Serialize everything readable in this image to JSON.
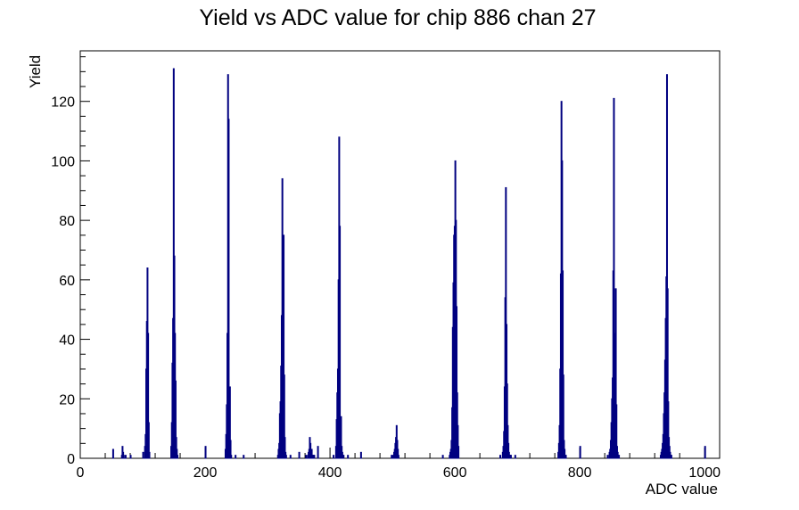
{
  "chart_data": {
    "type": "bar",
    "title": "Yield vs ADC value for chip 886 chan 27",
    "xlabel": "ADC value",
    "ylabel": "Yield",
    "xlim": [
      0,
      1024
    ],
    "ylim": [
      0,
      137
    ],
    "x_ticks": [
      0,
      200,
      400,
      600,
      800,
      1000
    ],
    "y_ticks": [
      0,
      20,
      40,
      60,
      80,
      100,
      120
    ],
    "grid": false,
    "line_color": "#000080",
    "series": [
      {
        "x": [
          52,
          66,
          67,
          68,
          69,
          72,
          80,
          100,
          103,
          104,
          105,
          106,
          107,
          108,
          109,
          110,
          145,
          146,
          147,
          148,
          149,
          150,
          151,
          152,
          153,
          154,
          155,
          200,
          232,
          233,
          234,
          235,
          236,
          237,
          238,
          239,
          240,
          241,
          248,
          261,
          316,
          317,
          318,
          319,
          320,
          321,
          322,
          323,
          324,
          325,
          326,
          327,
          328,
          329,
          336,
          350,
          361,
          364,
          365,
          366,
          367,
          368,
          369,
          370,
          371,
          372,
          373,
          374,
          380,
          405,
          409,
          410,
          411,
          412,
          413,
          414,
          415,
          416,
          417,
          418,
          419,
          420,
          421,
          428,
          449,
          498,
          500,
          502,
          503,
          504,
          505,
          506,
          507,
          508,
          509,
          580,
          591,
          592,
          593,
          594,
          595,
          596,
          597,
          598,
          599,
          600,
          601,
          602,
          603,
          604,
          605,
          672,
          676,
          677,
          678,
          679,
          680,
          681,
          682,
          683,
          684,
          685,
          686,
          687,
          688,
          689,
          696,
          765,
          766,
          767,
          768,
          769,
          770,
          771,
          772,
          773,
          774,
          775,
          776,
          777,
          800,
          844,
          847,
          848,
          849,
          850,
          851,
          852,
          853,
          854,
          855,
          856,
          857,
          858,
          859,
          860,
          861,
          862,
          929,
          930,
          931,
          932,
          933,
          934,
          935,
          936,
          937,
          938,
          939,
          940,
          941,
          942,
          943,
          944,
          945,
          946,
          1000
        ],
        "values": [
          3,
          1,
          4,
          2,
          1,
          1,
          1,
          2,
          4,
          8,
          30,
          46,
          64,
          42,
          12,
          2,
          4,
          12,
          32,
          47,
          131,
          68,
          42,
          26,
          7,
          3,
          1,
          4,
          3,
          8,
          18,
          42,
          129,
          114,
          13,
          24,
          6,
          1,
          1,
          1,
          1,
          3,
          5,
          15,
          19,
          31,
          48,
          94,
          69,
          75,
          28,
          7,
          2,
          1,
          1,
          2,
          1,
          1,
          2,
          3,
          7,
          5,
          2,
          3,
          1,
          1,
          1,
          1,
          4,
          1,
          4,
          13,
          22,
          30,
          60,
          108,
          78,
          9,
          14,
          4,
          2,
          1,
          1,
          1,
          2,
          1,
          1,
          2,
          3,
          5,
          7,
          11,
          6,
          3,
          1,
          1,
          1,
          2,
          3,
          6,
          17,
          44,
          59,
          75,
          78,
          100,
          80,
          51,
          22,
          11,
          4,
          1,
          2,
          4,
          9,
          24,
          54,
          91,
          45,
          25,
          11,
          5,
          2,
          1,
          1,
          1,
          1,
          2,
          5,
          11,
          30,
          62,
          120,
          100,
          63,
          28,
          6,
          3,
          1,
          1,
          4,
          1,
          2,
          3,
          6,
          12,
          20,
          27,
          63,
          121,
          42,
          13,
          57,
          18,
          4,
          2,
          1,
          1,
          1,
          2,
          3,
          5,
          8,
          15,
          22,
          33,
          47,
          61,
          129,
          57,
          19,
          7,
          4,
          2,
          1,
          1,
          4
        ]
      }
    ]
  }
}
